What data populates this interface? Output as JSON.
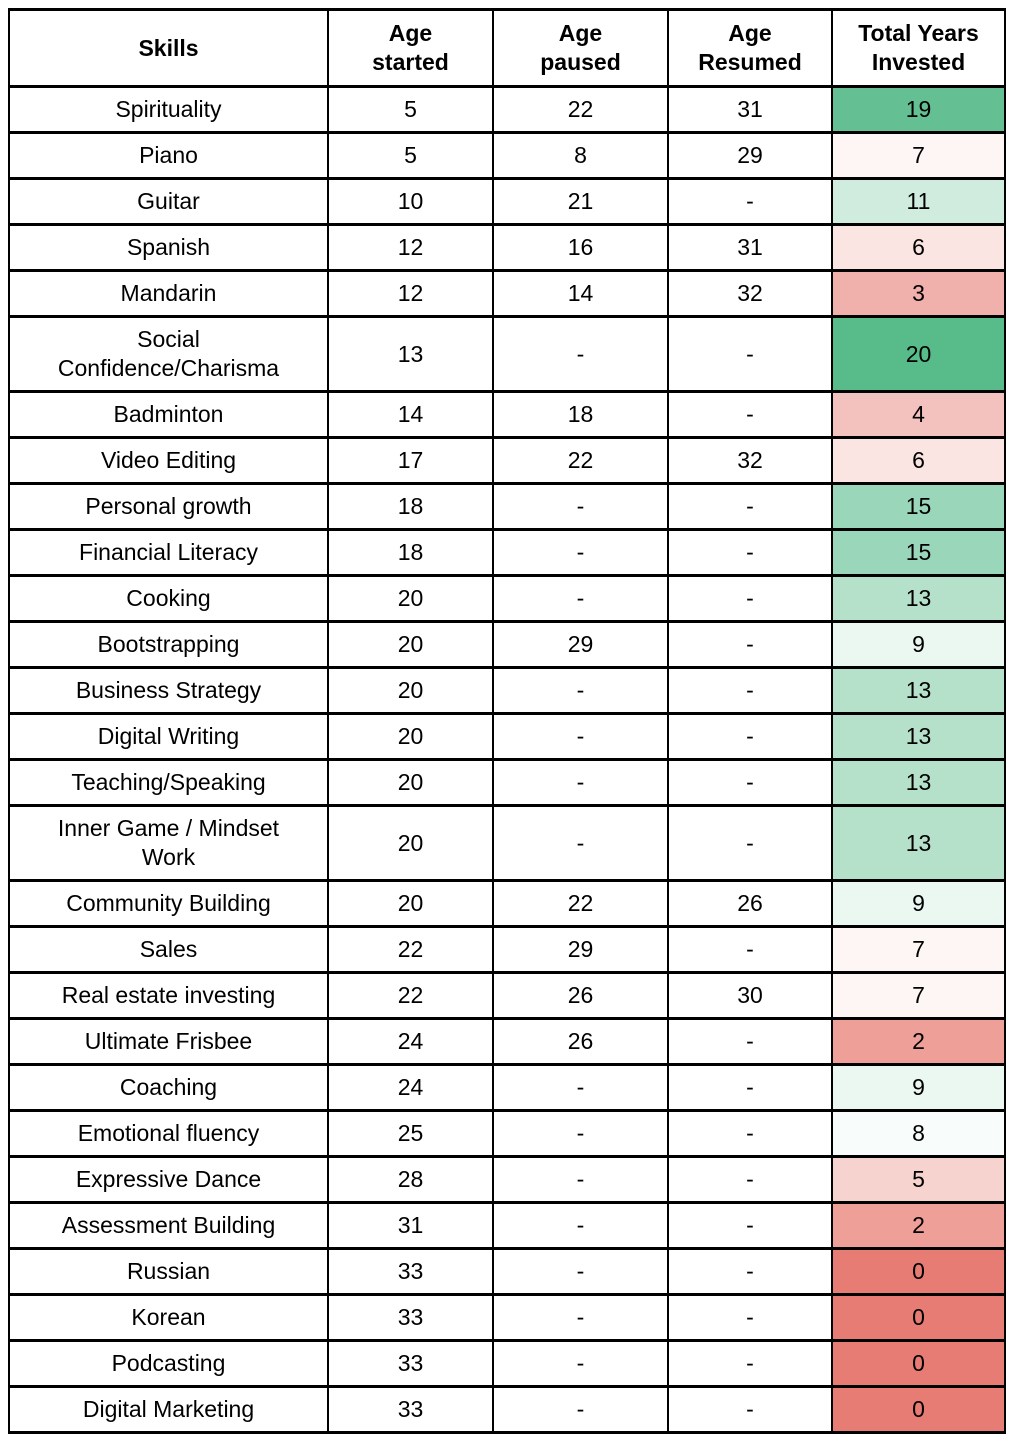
{
  "table": {
    "columns": [
      {
        "key": "skill",
        "label": "Skills"
      },
      {
        "key": "age_started",
        "label": "Age\nstarted"
      },
      {
        "key": "age_paused",
        "label": "Age\npaused"
      },
      {
        "key": "age_resumed",
        "label": "Age\nResumed"
      },
      {
        "key": "total_years",
        "label": "Total Years\nInvested"
      }
    ],
    "rows": [
      {
        "skill": "Spirituality",
        "age_started": "5",
        "age_paused": "22",
        "age_resumed": "31",
        "total_years": "19",
        "total_color": "#64c093"
      },
      {
        "skill": "Piano",
        "age_started": "5",
        "age_paused": "8",
        "age_resumed": "29",
        "total_years": "7",
        "total_color": "#fdf6f5"
      },
      {
        "skill": "Guitar",
        "age_started": "10",
        "age_paused": "21",
        "age_resumed": "-",
        "total_years": "11",
        "total_color": "#d0ecde"
      },
      {
        "skill": "Spanish",
        "age_started": "12",
        "age_paused": "16",
        "age_resumed": "31",
        "total_years": "6",
        "total_color": "#fae5e3"
      },
      {
        "skill": "Mandarin",
        "age_started": "12",
        "age_paused": "14",
        "age_resumed": "32",
        "total_years": "3",
        "total_color": "#f0b0ab"
      },
      {
        "skill": "Social Confidence/Charisma",
        "age_started": "13",
        "age_paused": "-",
        "age_resumed": "-",
        "total_years": "20",
        "total_color": "#57bb8a"
      },
      {
        "skill": "Badminton",
        "age_started": "14",
        "age_paused": "18",
        "age_resumed": "-",
        "total_years": "4",
        "total_color": "#f3c2be"
      },
      {
        "skill": "Video Editing",
        "age_started": "17",
        "age_paused": "22",
        "age_resumed": "32",
        "total_years": "6",
        "total_color": "#fae5e3"
      },
      {
        "skill": "Personal growth",
        "age_started": "18",
        "age_paused": "-",
        "age_resumed": "-",
        "total_years": "15",
        "total_color": "#9ad6b9"
      },
      {
        "skill": "Financial Literacy",
        "age_started": "18",
        "age_paused": "-",
        "age_resumed": "-",
        "total_years": "15",
        "total_color": "#9ad6b9"
      },
      {
        "skill": "Cooking",
        "age_started": "20",
        "age_paused": "-",
        "age_resumed": "-",
        "total_years": "13",
        "total_color": "#b5e1cb"
      },
      {
        "skill": "Bootstrapping",
        "age_started": "20",
        "age_paused": "29",
        "age_resumed": "-",
        "total_years": "9",
        "total_color": "#ebf7f1"
      },
      {
        "skill": "Business Strategy",
        "age_started": "20",
        "age_paused": "-",
        "age_resumed": "-",
        "total_years": "13",
        "total_color": "#b5e1cb"
      },
      {
        "skill": "Digital Writing",
        "age_started": "20",
        "age_paused": "-",
        "age_resumed": "-",
        "total_years": "13",
        "total_color": "#b5e1cb"
      },
      {
        "skill": "Teaching/Speaking",
        "age_started": "20",
        "age_paused": "-",
        "age_resumed": "-",
        "total_years": "13",
        "total_color": "#b5e1cb"
      },
      {
        "skill": "Inner Game / Mindset Work",
        "age_started": "20",
        "age_paused": "-",
        "age_resumed": "-",
        "total_years": "13",
        "total_color": "#b5e1cb"
      },
      {
        "skill": "Community Building",
        "age_started": "20",
        "age_paused": "22",
        "age_resumed": "26",
        "total_years": "9",
        "total_color": "#ebf7f1"
      },
      {
        "skill": "Sales",
        "age_started": "22",
        "age_paused": "29",
        "age_resumed": "-",
        "total_years": "7",
        "total_color": "#fdf6f5"
      },
      {
        "skill": "Real estate investing",
        "age_started": "22",
        "age_paused": "26",
        "age_resumed": "30",
        "total_years": "7",
        "total_color": "#fdf6f5"
      },
      {
        "skill": "Ultimate Frisbee",
        "age_started": "24",
        "age_paused": "26",
        "age_resumed": "-",
        "total_years": "2",
        "total_color": "#ed9f98"
      },
      {
        "skill": "Coaching",
        "age_started": "24",
        "age_paused": "-",
        "age_resumed": "-",
        "total_years": "9",
        "total_color": "#ebf7f1"
      },
      {
        "skill": "Emotional fluency",
        "age_started": "25",
        "age_paused": "-",
        "age_resumed": "-",
        "total_years": "8",
        "total_color": "#f8fcfa"
      },
      {
        "skill": "Expressive Dance",
        "age_started": "28",
        "age_paused": "-",
        "age_resumed": "-",
        "total_years": "5",
        "total_color": "#f7d3d0"
      },
      {
        "skill": "Assessment Building",
        "age_started": "31",
        "age_paused": "-",
        "age_resumed": "-",
        "total_years": "2",
        "total_color": "#ed9f98"
      },
      {
        "skill": "Russian",
        "age_started": "33",
        "age_paused": "-",
        "age_resumed": "-",
        "total_years": "0",
        "total_color": "#e67c73"
      },
      {
        "skill": "Korean",
        "age_started": "33",
        "age_paused": "-",
        "age_resumed": "-",
        "total_years": "0",
        "total_color": "#e67c73"
      },
      {
        "skill": "Podcasting",
        "age_started": "33",
        "age_paused": "-",
        "age_resumed": "-",
        "total_years": "0",
        "total_color": "#e67c73"
      },
      {
        "skill": "Digital Marketing",
        "age_started": "33",
        "age_paused": "-",
        "age_resumed": "-",
        "total_years": "0",
        "total_color": "#e67c73"
      }
    ]
  },
  "colors": {
    "scale_min_red": "#e67c73",
    "scale_mid_white": "#ffffff",
    "scale_max_green": "#57bb8a",
    "border": "#000000",
    "text": "#000000",
    "background": "#ffffff"
  }
}
